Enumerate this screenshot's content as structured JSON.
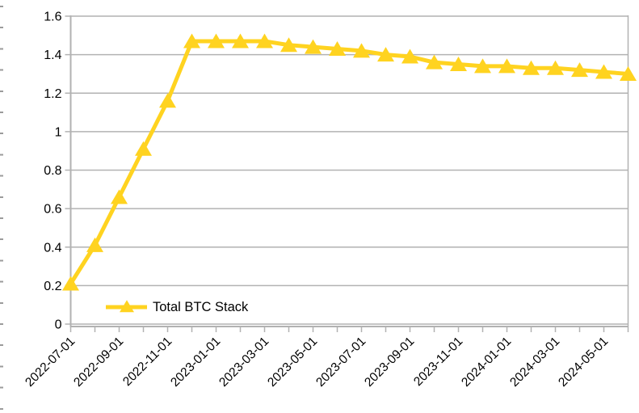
{
  "chart_data": {
    "type": "line",
    "title": "",
    "xlabel": "",
    "ylabel": "",
    "series": [
      {
        "name": "Total BTC Stack",
        "color": "#FFD320",
        "marker": "triangle-up",
        "x": [
          "2022-07-01",
          "2022-08-01",
          "2022-09-01",
          "2022-10-01",
          "2022-11-01",
          "2022-12-01",
          "2023-01-01",
          "2023-02-01",
          "2023-03-01",
          "2023-04-01",
          "2023-05-01",
          "2023-06-01",
          "2023-07-01",
          "2023-08-01",
          "2023-09-01",
          "2023-10-01",
          "2023-11-01",
          "2023-12-01",
          "2024-01-01",
          "2024-02-01",
          "2024-03-01",
          "2024-04-01",
          "2024-05-01",
          "2024-06-01"
        ],
        "values": [
          0.21,
          0.41,
          0.66,
          0.91,
          1.16,
          1.47,
          1.47,
          1.47,
          1.47,
          1.45,
          1.44,
          1.43,
          1.42,
          1.4,
          1.39,
          1.36,
          1.35,
          1.34,
          1.34,
          1.33,
          1.33,
          1.32,
          1.31,
          1.3
        ]
      }
    ],
    "x_label_every": 2,
    "x_tick_labels_shown": [
      "2022-07-01",
      "2022-09-01",
      "2022-11-01",
      "2023-01-01",
      "2023-03-01",
      "2023-05-01",
      "2023-07-01",
      "2023-09-01",
      "2023-11-01",
      "2024-01-01",
      "2024-03-01",
      "2024-05-01"
    ],
    "x_tick_label_rotation_deg": -45,
    "y_ticks": [
      0,
      0.2,
      0.4,
      0.6,
      0.8,
      1,
      1.2,
      1.4,
      1.6
    ],
    "y_tick_labels": [
      "0",
      "0.2",
      "0.4",
      "0.6",
      "0.8",
      "1",
      "1.2",
      "1.4",
      "1.6"
    ],
    "ylim": [
      0,
      1.6
    ],
    "grid": "horizontal",
    "legend_position": "inside-bottom-left",
    "colors": {
      "series": "#FFD320",
      "grid": "#B2B2B2",
      "axis": "#B2B2B2",
      "text": "#000000",
      "background": "#FFFFFF"
    }
  }
}
